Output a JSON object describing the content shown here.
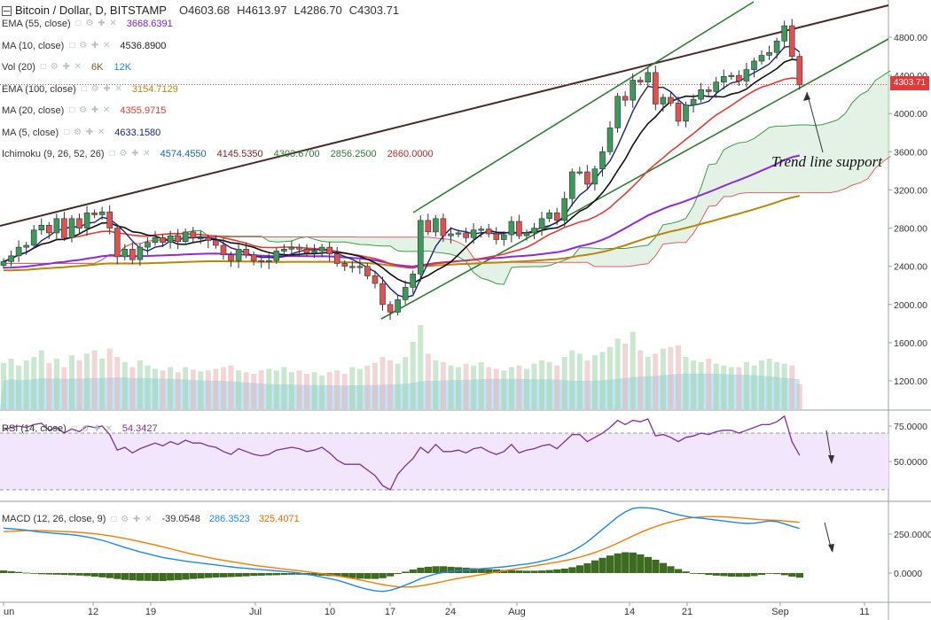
{
  "header": {
    "symbol": "Bitcoin / Dollar, D, BITSTAMP",
    "open": "O4603.68",
    "high": "H4613.97",
    "low": "L4286.70",
    "close": "C4303.71"
  },
  "indicators": [
    {
      "label": "EMA (55, close)",
      "values": [
        {
          "text": "3668.6391",
          "color": "#7b1fd6"
        }
      ]
    },
    {
      "label": "MA (10, close)",
      "values": [
        {
          "text": "4536.8900",
          "color": "#222222"
        }
      ]
    },
    {
      "label": "Vol (20)",
      "values": [
        {
          "text": "6K",
          "color": "#7a5a2b"
        },
        {
          "text": "12K",
          "color": "#1e88e5"
        }
      ]
    },
    {
      "label": "EMA (100, close)",
      "values": [
        {
          "text": "3154.7129",
          "color": "#b8860b"
        }
      ]
    },
    {
      "label": "MA (20, close)",
      "values": [
        {
          "text": "4355.9715",
          "color": "#e53935"
        }
      ]
    },
    {
      "label": "MA (5, close)",
      "values": [
        {
          "text": "4633.1580",
          "color": "#1a237e"
        }
      ]
    },
    {
      "label": "Ichimoku (9, 26, 52, 26)",
      "values": [
        {
          "text": "4574.4550",
          "color": "#1565c0"
        },
        {
          "text": "4145.5350",
          "color": "#8b1a1a"
        },
        {
          "text": "4303.6700",
          "color": "#2e7d32"
        },
        {
          "text": "2856.2500",
          "color": "#2e7d32"
        },
        {
          "text": "2660.0000",
          "color": "#c62828"
        }
      ]
    }
  ],
  "rsi_legend": {
    "label": "RSI (14, close)",
    "value": "54.3427"
  },
  "macd_legend": {
    "label": "MACD (12, 26, close, 9)",
    "values": [
      {
        "text": "-39.0548",
        "color": "#333333"
      },
      {
        "text": "286.3523",
        "color": "#1e88e5"
      },
      {
        "text": "325.4071",
        "color": "#ef6c00"
      }
    ]
  },
  "control_glyphs": "□ ⚙ ✚ ✕",
  "annotation": "Trend line support",
  "last_price_tag": "4303.71",
  "colors": {
    "up": "#3a9a5b",
    "down": "#e05252",
    "price_label_bg": "#e03a3a",
    "trend_channel": "#2e7d32",
    "resistance": "#4a2a2a",
    "rsi_fill": "#f1e6fb",
    "rsi_line": "#7b2fa5"
  },
  "chart_data": [
    {
      "type": "candlestick",
      "title": "Bitcoin / Dollar, D, BITSTAMP",
      "x_tick_labels": [
        "un",
        "12",
        "19",
        "Jul",
        "10",
        "17",
        "24",
        "Aug",
        "14",
        "21",
        "Sep",
        "11"
      ],
      "y_ticks": [
        1200,
        1600,
        2000,
        2400,
        2800,
        3200,
        3600,
        4000,
        4400,
        4800
      ],
      "y_tick_labels": [
        "1200.00",
        "1600.00",
        "2000.00",
        "2400.00",
        "2800.00",
        "3200.00",
        "3600.00",
        "4000.00",
        "4400.00",
        "4800.00"
      ],
      "ylim": [
        1030,
        5130
      ],
      "grid": false,
      "last_price": 4303.71,
      "close": [
        2450,
        2510,
        2600,
        2620,
        2780,
        2830,
        2750,
        2900,
        2700,
        2900,
        2800,
        2960,
        2940,
        2970,
        2800,
        2500,
        2580,
        2470,
        2600,
        2650,
        2700,
        2650,
        2720,
        2660,
        2760,
        2700,
        2700,
        2670,
        2620,
        2520,
        2460,
        2580,
        2520,
        2460,
        2450,
        2460,
        2560,
        2580,
        2600,
        2580,
        2540,
        2560,
        2600,
        2530,
        2430,
        2400,
        2400,
        2400,
        2300,
        2220,
        2000,
        1920,
        2050,
        2180,
        2320,
        2880,
        2760,
        2900,
        2720,
        2740,
        2750,
        2700,
        2780,
        2790,
        2740,
        2680,
        2730,
        2870,
        2720,
        2750,
        2800,
        2900,
        2960,
        2880,
        3110,
        3390,
        3390,
        3260,
        3420,
        3600,
        3850,
        4180,
        4140,
        4350,
        4330,
        4430,
        4100,
        4170,
        4110,
        3920,
        4090,
        4150,
        4250,
        4230,
        4330,
        4390,
        4400,
        4340,
        4460,
        4550,
        4610,
        4640,
        4760,
        4920,
        4600,
        4300
      ],
      "annotations": [
        "Trend line support"
      ]
    },
    {
      "type": "bar",
      "title": "Vol (20)",
      "values_relative": [
        0.55,
        0.6,
        0.52,
        0.58,
        0.62,
        0.7,
        0.55,
        0.6,
        0.5,
        0.64,
        0.58,
        0.66,
        0.7,
        0.6,
        0.72,
        0.62,
        0.56,
        0.5,
        0.58,
        0.52,
        0.48,
        0.46,
        0.5,
        0.44,
        0.5,
        0.47,
        0.45,
        0.46,
        0.48,
        0.5,
        0.52,
        0.46,
        0.44,
        0.42,
        0.46,
        0.48,
        0.46,
        0.5,
        0.44,
        0.46,
        0.42,
        0.44,
        0.4,
        0.44,
        0.46,
        0.42,
        0.5,
        0.48,
        0.52,
        0.55,
        0.62,
        0.58,
        0.54,
        0.62,
        0.8,
        1.0,
        0.66,
        0.58,
        0.56,
        0.52,
        0.5,
        0.54,
        0.52,
        0.56,
        0.5,
        0.48,
        0.46,
        0.5,
        0.52,
        0.48,
        0.54,
        0.58,
        0.56,
        0.52,
        0.62,
        0.7,
        0.66,
        0.58,
        0.64,
        0.68,
        0.74,
        0.84,
        0.78,
        0.92,
        0.7,
        0.62,
        0.66,
        0.72,
        0.74,
        0.76,
        0.62,
        0.58,
        0.56,
        0.6,
        0.54,
        0.52,
        0.5,
        0.5,
        0.56,
        0.52,
        0.58,
        0.6,
        0.56,
        0.54,
        0.52,
        0.3
      ]
    },
    {
      "type": "line",
      "title": "RSI (14, close)",
      "y_ticks": [
        50,
        75
      ],
      "y_tick_labels": [
        "50.0000",
        "75.0000"
      ],
      "band": [
        30,
        70
      ],
      "ylim": [
        28,
        90
      ],
      "values": [
        72,
        74,
        75,
        74,
        76,
        77,
        72,
        74,
        70,
        73,
        71,
        75,
        74,
        75,
        69,
        58,
        60,
        56,
        59,
        61,
        63,
        61,
        64,
        62,
        65,
        63,
        63,
        61,
        60,
        57,
        55,
        59,
        57,
        55,
        54,
        55,
        58,
        59,
        60,
        59,
        57,
        58,
        60,
        56,
        51,
        48,
        48,
        48,
        44,
        40,
        33,
        30,
        41,
        47,
        52,
        60,
        56,
        62,
        57,
        57,
        58,
        56,
        59,
        60,
        57,
        55,
        57,
        62,
        56,
        58,
        59,
        61,
        62,
        59,
        64,
        69,
        69,
        64,
        67,
        70,
        74,
        79,
        76,
        79,
        78,
        80,
        68,
        69,
        67,
        64,
        67,
        68,
        70,
        69,
        71,
        72,
        72,
        70,
        72,
        74,
        76,
        76,
        78,
        82,
        64,
        54.3427
      ]
    },
    {
      "type": "line",
      "title": "MACD (12, 26, close, 9)",
      "y_ticks": [
        0,
        250
      ],
      "y_tick_labels": [
        "0.0000",
        "250.0000"
      ],
      "ylim": [
        -145,
        435
      ],
      "series": [
        {
          "name": "MACD",
          "values": [
            288,
            284,
            280,
            275,
            268,
            262,
            258,
            254,
            250,
            246,
            240,
            232,
            222,
            210,
            196,
            180,
            164,
            150,
            136,
            124,
            112,
            100,
            92,
            84,
            76,
            70,
            64,
            58,
            52,
            46,
            40,
            34,
            30,
            26,
            22,
            18,
            14,
            10,
            6,
            0,
            -8,
            -16,
            -26,
            -36,
            -46,
            -60,
            -76,
            -92,
            -104,
            -114,
            -118,
            -110,
            -96,
            -78,
            -58,
            -36,
            -20,
            -6,
            4,
            10,
            16,
            20,
            24,
            28,
            32,
            36,
            40,
            46,
            52,
            58,
            66,
            76,
            88,
            102,
            118,
            140,
            168,
            200,
            240,
            280,
            320,
            360,
            392,
            414,
            420,
            418,
            412,
            400,
            386,
            374,
            364,
            356,
            352,
            346,
            340,
            334,
            328,
            322,
            318,
            320,
            326,
            334,
            330,
            316,
            300,
            286
          ]
        },
        {
          "name": "Signal",
          "values": [
            266,
            268,
            270,
            272,
            273,
            272,
            270,
            268,
            266,
            264,
            261,
            257,
            252,
            246,
            239,
            231,
            222,
            212,
            202,
            191,
            180,
            168,
            156,
            144,
            132,
            120,
            110,
            100,
            90,
            82,
            74,
            66,
            58,
            50,
            44,
            38,
            32,
            26,
            20,
            14,
            8,
            2,
            -4,
            -10,
            -18,
            -26,
            -34,
            -44,
            -54,
            -64,
            -74,
            -82,
            -88,
            -90,
            -88,
            -82,
            -74,
            -64,
            -54,
            -44,
            -34,
            -26,
            -18,
            -10,
            -2,
            6,
            14,
            22,
            30,
            38,
            46,
            54,
            62,
            70,
            80,
            90,
            102,
            116,
            132,
            150,
            170,
            192,
            214,
            238,
            260,
            280,
            298,
            314,
            328,
            340,
            350,
            356,
            360,
            362,
            362,
            360,
            358,
            354,
            350,
            346,
            342,
            340,
            338,
            334,
            330,
            325.4071
          ]
        }
      ]
    }
  ]
}
